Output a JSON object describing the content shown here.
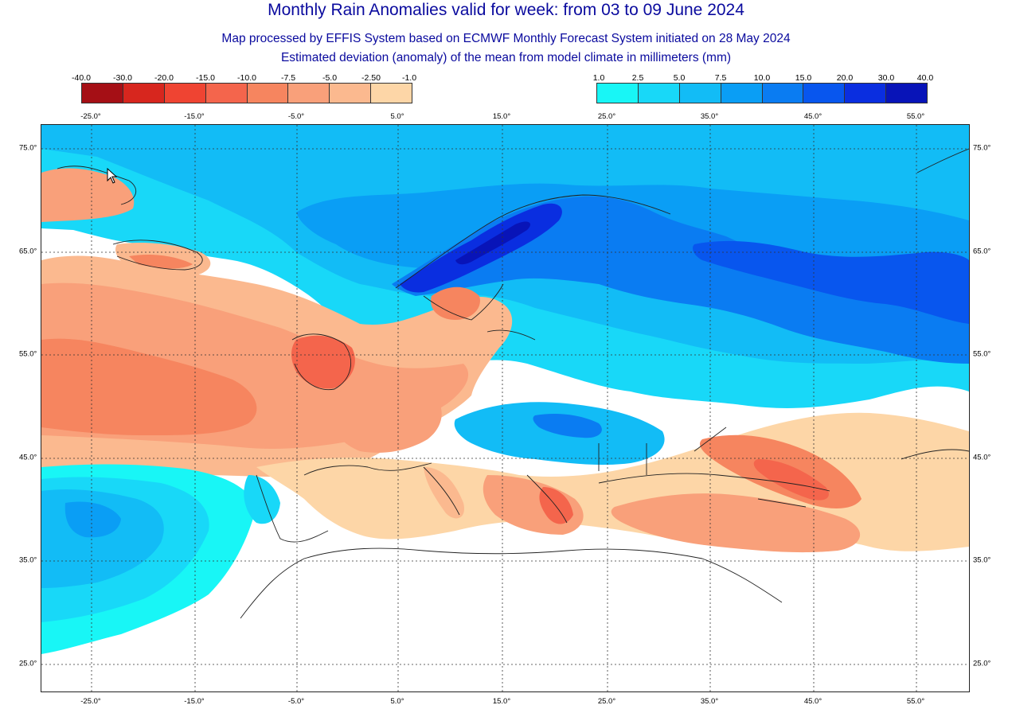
{
  "title": "Monthly Rain Anomalies valid for week: from 03 to 09 June 2024",
  "subtitle1": "Map processed by EFFIS System based on ECMWF Monthly Forecast System initiated on 28 May 2024",
  "subtitle2": "Estimated deviation (anomaly) of the mean from model climate in millimeters (mm)",
  "legend_negative": {
    "labels": [
      "-40.0",
      "-30.0",
      "-20.0",
      "-15.0",
      "-10.0",
      "-7.5",
      "-5.0",
      "-2.50",
      "-1.0"
    ],
    "colors": [
      "#a50f15",
      "#d7261e",
      "#ef4432",
      "#f4654c",
      "#f6855f",
      "#f9a07a",
      "#fbb98f",
      "#fdd6a7"
    ]
  },
  "legend_positive": {
    "labels": [
      "1.0",
      "2.5",
      "5.0",
      "7.5",
      "10.0",
      "15.0",
      "20.0",
      "30.0",
      "40.0"
    ],
    "colors": [
      "#18f6f6",
      "#18d8f8",
      "#12bcf6",
      "#0a9ef5",
      "#0a7cf2",
      "#0856ee",
      "#0a2ee0",
      "#0814b8"
    ]
  },
  "lon_ticks": [
    "-25.0°",
    "-15.0°",
    "-5.0°",
    "5.0°",
    "15.0°",
    "25.0°",
    "35.0°",
    "45.0°",
    "55.0°"
  ],
  "lat_ticks": [
    "75.0°",
    "65.0°",
    "55.0°",
    "45.0°",
    "35.0°",
    "25.0°"
  ]
}
